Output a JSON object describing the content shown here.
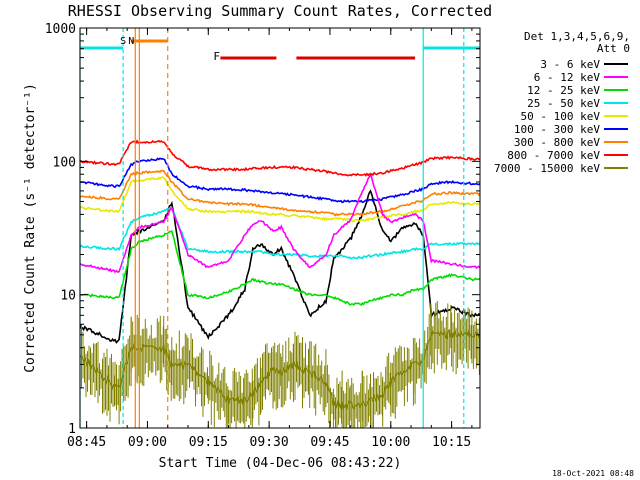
{
  "chart_data": {
    "type": "line",
    "title": "RHESSI Observing Summary Count Rates, Corrected",
    "xlabel": "Start Time (04-Dec-06 08:43:22)",
    "ylabel": "Corrected Count Rate (s⁻¹ detector⁻¹)",
    "y_scale": "log",
    "ylim": [
      1,
      1000
    ],
    "xlim": [
      "08:43:22",
      "10:22"
    ],
    "x_ticks": [
      "08:45",
      "09:00",
      "09:15",
      "09:30",
      "09:45",
      "10:00",
      "10:15"
    ],
    "y_ticks": [
      "1",
      "10",
      "100",
      "1000"
    ],
    "grid": false,
    "legend_placement": "right",
    "legend_header": [
      "Det 1,3,4,5,6,9,",
      "Att 0"
    ],
    "series": [
      {
        "name": "3 - 6 keV",
        "color": "#000000",
        "x": [
          "08:43:22",
          "08:52",
          "08:53",
          "08:56",
          "08:58",
          "09:04",
          "09:06",
          "09:10",
          "09:15",
          "09:20",
          "09:24",
          "09:26",
          "09:28",
          "09:31",
          "09:33",
          "09:36",
          "09:40",
          "09:44",
          "09:46",
          "09:48",
          "09:50",
          "09:53",
          "09:55",
          "09:58",
          "10:00",
          "10:03",
          "10:06",
          "10:08",
          "10:10",
          "10:15",
          "10:20",
          "10:22"
        ],
        "y": [
          5.8,
          4.5,
          4.5,
          28,
          30,
          35,
          50,
          8,
          4.8,
          7,
          11,
          22,
          24,
          20,
          22,
          14,
          7,
          9,
          19,
          22,
          26,
          40,
          60,
          30,
          25,
          32,
          34,
          28,
          7,
          8,
          7,
          7
        ]
      },
      {
        "name": "6 - 12 keV",
        "color": "#ff00ff",
        "x": [
          "08:43:22",
          "08:52",
          "08:53",
          "08:56",
          "08:58",
          "09:04",
          "09:06",
          "09:10",
          "09:15",
          "09:20",
          "09:24",
          "09:26",
          "09:28",
          "09:31",
          "09:33",
          "09:36",
          "09:40",
          "09:44",
          "09:46",
          "09:48",
          "09:50",
          "09:53",
          "09:55",
          "09:58",
          "10:00",
          "10:03",
          "10:06",
          "10:08",
          "10:10",
          "10:15",
          "10:20",
          "10:22"
        ],
        "y": [
          17,
          15,
          15,
          28,
          32,
          35,
          45,
          20,
          16,
          18,
          28,
          34,
          36,
          30,
          32,
          22,
          16,
          20,
          28,
          32,
          36,
          60,
          80,
          40,
          35,
          38,
          40,
          36,
          18,
          17,
          16,
          16
        ]
      },
      {
        "name": "12 - 25 keV",
        "color": "#00dd00",
        "x": [
          "08:43:22",
          "08:52",
          "08:53",
          "08:56",
          "08:58",
          "09:04",
          "09:06",
          "09:10",
          "09:15",
          "09:20",
          "09:24",
          "09:26",
          "09:28",
          "09:31",
          "09:33",
          "09:36",
          "09:40",
          "09:44",
          "09:46",
          "09:48",
          "09:50",
          "09:53",
          "09:55",
          "09:58",
          "10:00",
          "10:03",
          "10:06",
          "10:08",
          "10:10",
          "10:15",
          "10:20",
          "10:22"
        ],
        "y": [
          10,
          9.5,
          9.5,
          22,
          25,
          28,
          30,
          10,
          9.5,
          10.5,
          12,
          13,
          12.5,
          12,
          12,
          11,
          10,
          10,
          9.5,
          9,
          8.5,
          8.5,
          9,
          9.5,
          10,
          10,
          11,
          11,
          13,
          14,
          13,
          13
        ]
      },
      {
        "name": "25 - 50 keV",
        "color": "#00e5e5",
        "x": [
          "08:43:22",
          "08:52",
          "08:53",
          "08:56",
          "08:58",
          "09:04",
          "09:06",
          "09:10",
          "09:15",
          "09:20",
          "09:24",
          "09:26",
          "09:28",
          "09:31",
          "09:33",
          "09:36",
          "09:40",
          "09:44",
          "09:46",
          "09:48",
          "09:50",
          "09:53",
          "09:55",
          "09:58",
          "10:00",
          "10:03",
          "10:06",
          "10:08",
          "10:10",
          "10:15",
          "10:20",
          "10:22"
        ],
        "y": [
          23,
          22,
          22,
          35,
          38,
          42,
          45,
          22,
          21,
          21,
          21,
          21,
          21,
          20,
          20,
          20,
          19.5,
          19.5,
          19.5,
          19.5,
          19,
          19,
          19.5,
          20,
          20.5,
          21,
          22,
          22,
          24,
          24,
          24,
          24
        ]
      },
      {
        "name": "50 - 100 keV",
        "color": "#e8e800",
        "x": [
          "08:43:22",
          "08:52",
          "08:53",
          "08:56",
          "08:58",
          "09:04",
          "09:06",
          "09:10",
          "09:15",
          "09:20",
          "09:24",
          "09:26",
          "09:28",
          "09:31",
          "09:33",
          "09:36",
          "09:40",
          "09:44",
          "09:46",
          "09:48",
          "09:50",
          "09:53",
          "09:55",
          "09:58",
          "10:00",
          "10:03",
          "10:06",
          "10:08",
          "10:10",
          "10:15",
          "10:20",
          "10:22"
        ],
        "y": [
          45,
          42,
          42,
          70,
          72,
          75,
          60,
          44,
          42,
          42,
          42,
          42,
          41,
          40,
          40,
          39,
          38,
          37,
          37,
          37,
          36,
          36,
          37,
          38,
          39,
          40,
          42,
          43,
          48,
          49,
          48,
          48
        ]
      },
      {
        "name": "100 - 300 keV",
        "color": "#0000ff",
        "x": [
          "08:43:22",
          "08:52",
          "08:53",
          "08:56",
          "08:58",
          "09:04",
          "09:06",
          "09:10",
          "09:15",
          "09:20",
          "09:24",
          "09:26",
          "09:28",
          "09:31",
          "09:33",
          "09:36",
          "09:40",
          "09:44",
          "09:46",
          "09:48",
          "09:50",
          "09:53",
          "09:55",
          "09:58",
          "10:00",
          "10:03",
          "10:06",
          "10:08",
          "10:10",
          "10:15",
          "10:20",
          "10:22"
        ],
        "y": [
          70,
          65,
          65,
          95,
          100,
          105,
          80,
          65,
          62,
          62,
          61,
          60,
          59,
          58,
          57,
          56,
          54,
          52,
          51,
          50,
          50,
          50,
          51,
          52,
          54,
          56,
          60,
          62,
          68,
          70,
          68,
          68
        ]
      },
      {
        "name": "300 - 800 keV",
        "color": "#ff8000",
        "x": [
          "08:43:22",
          "08:52",
          "08:53",
          "08:56",
          "08:58",
          "09:04",
          "09:06",
          "09:10",
          "09:15",
          "09:20",
          "09:24",
          "09:26",
          "09:28",
          "09:31",
          "09:33",
          "09:36",
          "09:40",
          "09:44",
          "09:46",
          "09:48",
          "09:50",
          "09:53",
          "09:55",
          "09:58",
          "10:00",
          "10:03",
          "10:06",
          "10:08",
          "10:10",
          "10:15",
          "10:20",
          "10:22"
        ],
        "y": [
          55,
          52,
          52,
          80,
          82,
          85,
          70,
          52,
          49,
          48,
          48,
          47,
          46,
          45,
          44,
          43,
          42,
          41,
          40,
          40,
          40,
          40,
          41,
          42,
          44,
          46,
          49,
          51,
          57,
          58,
          57,
          57
        ]
      },
      {
        "name": "800 - 7000 keV",
        "color": "#ff0000",
        "x": [
          "08:43:22",
          "08:52",
          "08:53",
          "08:56",
          "08:58",
          "09:04",
          "09:06",
          "09:10",
          "09:15",
          "09:20",
          "09:24",
          "09:26",
          "09:28",
          "09:31",
          "09:33",
          "09:36",
          "09:40",
          "09:44",
          "09:46",
          "09:48",
          "09:50",
          "09:53",
          "09:55",
          "09:58",
          "10:00",
          "10:03",
          "10:06",
          "10:08",
          "10:10",
          "10:15",
          "10:20",
          "10:22"
        ],
        "y": [
          100,
          95,
          95,
          140,
          140,
          140,
          115,
          92,
          87,
          87,
          87,
          88,
          89,
          90,
          91,
          90,
          87,
          84,
          82,
          80,
          79,
          79,
          80,
          82,
          85,
          89,
          95,
          98,
          105,
          107,
          104,
          104
        ]
      },
      {
        "name": "7000 - 15000 keV",
        "color": "#808000",
        "x": [
          "08:43:22",
          "08:52",
          "08:53",
          "08:56",
          "08:58",
          "09:04",
          "09:06",
          "09:10",
          "09:15",
          "09:20",
          "09:24",
          "09:26",
          "09:28",
          "09:31",
          "09:33",
          "09:36",
          "09:40",
          "09:44",
          "09:46",
          "09:48",
          "09:50",
          "09:53",
          "09:55",
          "09:58",
          "10:00",
          "10:03",
          "10:06",
          "10:08",
          "10:10",
          "10:15",
          "10:20",
          "10:22"
        ],
        "y": [
          3.5,
          2,
          2,
          4,
          4,
          4,
          3,
          3,
          2.2,
          1.6,
          1.6,
          1.8,
          2.2,
          2.8,
          2.6,
          3,
          2.6,
          2.2,
          1.5,
          1.5,
          1.5,
          1.5,
          1.6,
          1.8,
          2.2,
          2.6,
          3,
          3.2,
          5,
          5,
          5,
          5
        ]
      }
    ],
    "annotations": [
      {
        "label": "S",
        "color": "#dddd00",
        "x": "08:54"
      },
      {
        "label": "N",
        "color": "#00cccc",
        "x": "08:56"
      },
      {
        "label": "F",
        "color": "#dd0000",
        "x_start": "09:17",
        "x_end": "10:06"
      }
    ],
    "footer_timestamp": "18-Oct-2021 08:48"
  }
}
